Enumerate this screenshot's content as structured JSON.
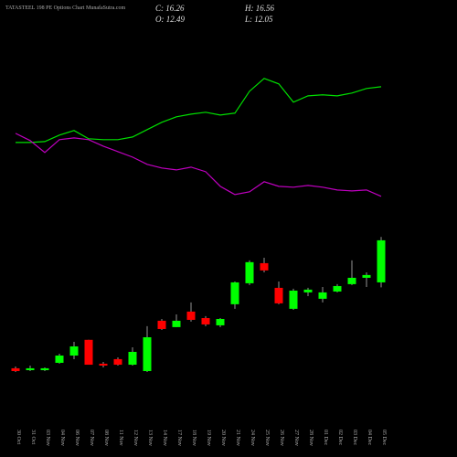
{
  "chart_data": {
    "type": "candlestick",
    "title": "TATASTEEL 198 PE Options Chart MunafaSutra.com",
    "info": [
      "C: 16.26",
      "H: 16.56",
      "O: 12.49",
      "L: 12.05"
    ],
    "categories": [
      "30 Oct",
      "31 Oct",
      "03 Nov",
      "04 Nov",
      "06 Nov",
      "07 Nov",
      "08 Nov",
      "11 Nov",
      "12 Nov",
      "13 Nov",
      "14 Nov",
      "17 Nov",
      "18 Nov",
      "19 Nov",
      "20 Nov",
      "21 Nov",
      "24 Nov",
      "25 Nov",
      "26 Nov",
      "27 Nov",
      "28 Nov",
      "01 Dec",
      "02 Dec",
      "03 Dec",
      "04 Dec",
      "05 Dec"
    ],
    "open": [
      4.79,
      4.62,
      4.62,
      5.28,
      5.93,
      7.34,
      5.2,
      5.61,
      5.11,
      4.54,
      9.05,
      8.48,
      9.87,
      9.29,
      8.64,
      10.53,
      12.41,
      14.21,
      12.0,
      10.12,
      11.59,
      11.02,
      11.67,
      12.33,
      12.9,
      12.49
    ],
    "high": [
      4.95,
      5.03,
      4.87,
      6.1,
      7.16,
      7.34,
      5.36,
      5.77,
      6.67,
      8.56,
      9.21,
      9.62,
      10.69,
      9.46,
      9.29,
      12.57,
      14.46,
      14.7,
      12.57,
      11.92,
      12.0,
      12.08,
      12.33,
      14.46,
      13.39,
      16.56
    ],
    "low": [
      4.46,
      4.54,
      4.54,
      5.2,
      5.6,
      5.11,
      4.87,
      5.03,
      5.03,
      4.46,
      8.23,
      8.48,
      8.97,
      8.56,
      8.48,
      10.12,
      12.25,
      13.39,
      10.53,
      10.03,
      11.26,
      10.69,
      11.59,
      12.25,
      12.08,
      12.05
    ],
    "close": [
      4.54,
      4.79,
      4.79,
      5.93,
      6.75,
      5.11,
      5.03,
      5.11,
      6.26,
      7.57,
      8.31,
      9.05,
      9.13,
      8.72,
      9.21,
      12.49,
      14.3,
      13.56,
      10.61,
      11.75,
      11.84,
      11.59,
      12.16,
      12.9,
      13.15,
      16.26
    ],
    "up_color": "#00ff00",
    "down_color": "#ff0000",
    "series": [
      {
        "color": "#00e000",
        "values": [
          25.03,
          25.03,
          25.11,
          25.69,
          26.1,
          25.36,
          25.28,
          25.28,
          25.52,
          26.18,
          26.84,
          27.33,
          27.57,
          27.74,
          27.49,
          27.66,
          29.62,
          30.77,
          30.28,
          28.64,
          29.21,
          29.3,
          29.21,
          29.46,
          29.87,
          30.03
        ]
      },
      {
        "color": "#c000c0",
        "values": [
          25.85,
          25.2,
          24.13,
          25.28,
          25.44,
          25.28,
          24.7,
          24.21,
          23.72,
          23.07,
          22.74,
          22.57,
          22.82,
          22.41,
          21.1,
          20.36,
          20.61,
          21.51,
          21.1,
          21.02,
          21.18,
          21.02,
          20.77,
          20.69,
          20.77,
          20.2
        ]
      }
    ],
    "ylim": [
      0,
      37.8
    ]
  }
}
